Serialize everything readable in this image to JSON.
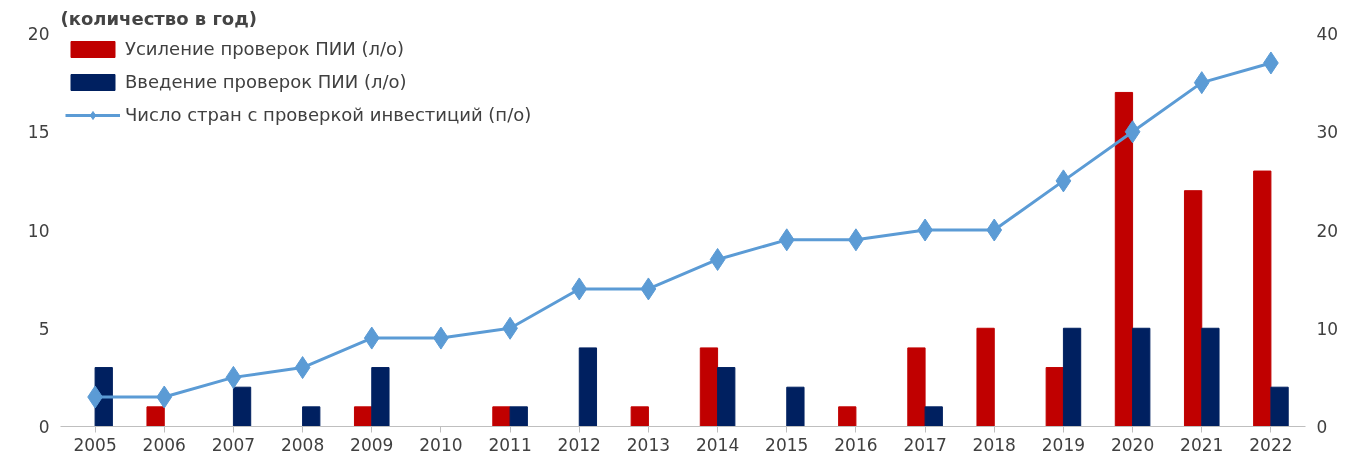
{
  "chart_data": {
    "type": "bar",
    "title": "(количество в год)",
    "categories": [
      "2005",
      "2006",
      "2007",
      "2008",
      "2009",
      "2010",
      "2011",
      "2012",
      "2013",
      "2014",
      "2015",
      "2016",
      "2017",
      "2018",
      "2019",
      "2020",
      "2021",
      "2022"
    ],
    "series": [
      {
        "name": "Усиление проверок ПИИ (л/о)",
        "color": "#c00000",
        "values": [
          0,
          1,
          0,
          0,
          1,
          0,
          1,
          0,
          1,
          4,
          0,
          1,
          4,
          5,
          3,
          17,
          12,
          13
        ]
      },
      {
        "name": "Введение проверок ПИИ (л/о)",
        "color": "#002060",
        "values": [
          3,
          0,
          2,
          1,
          3,
          0,
          1,
          4,
          0,
          3,
          2,
          0,
          1,
          0,
          5,
          5,
          5,
          2
        ]
      },
      {
        "name": "Число стран с проверкой инвестиций (п/о)",
        "color": "#5b9bd5",
        "type": "line",
        "axis": "y2",
        "marker": "diamond",
        "values": [
          3,
          3,
          5,
          6,
          9,
          9,
          10,
          14,
          14,
          17,
          19,
          19,
          20,
          20,
          25,
          30,
          35,
          37
        ]
      }
    ],
    "ylim": [
      0,
      20
    ],
    "yticks": [
      0,
      5,
      10,
      15,
      20
    ],
    "y2lim": [
      0,
      40
    ],
    "y2ticks": [
      0,
      10,
      20,
      30,
      40
    ],
    "grid": false,
    "legend": "top left"
  }
}
